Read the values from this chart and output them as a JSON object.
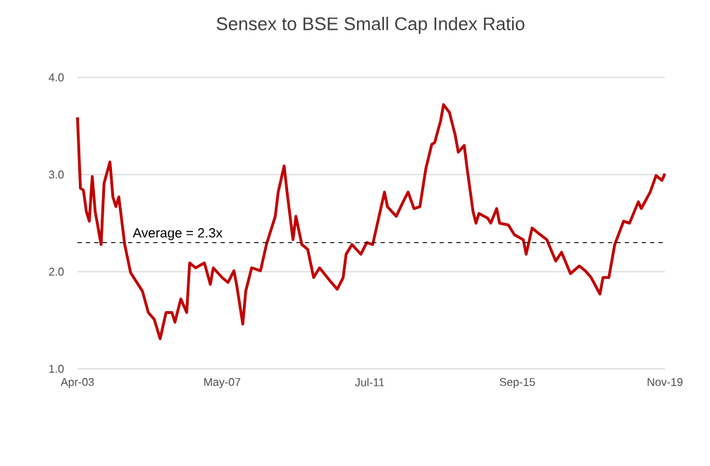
{
  "chart_data": {
    "type": "line",
    "title": "Sensex to BSE Small Cap Index Ratio",
    "x": [
      "2003-04",
      "2003-05",
      "2003-06",
      "2003-07",
      "2003-08",
      "2003-09",
      "2003-10",
      "2003-12",
      "2004-01",
      "2004-03",
      "2004-04",
      "2004-05",
      "2004-06",
      "2004-08",
      "2004-10",
      "2005-02",
      "2005-04",
      "2005-06",
      "2005-08",
      "2005-10",
      "2005-12",
      "2006-01",
      "2006-03",
      "2006-05",
      "2006-06",
      "2006-08",
      "2006-11",
      "2007-01",
      "2007-02",
      "2007-05",
      "2007-07",
      "2007-09",
      "2007-10",
      "2007-12",
      "2008-01",
      "2008-03",
      "2008-06",
      "2008-08",
      "2008-11",
      "2008-12",
      "2009-02",
      "2009-03",
      "2009-05",
      "2009-06",
      "2009-08",
      "2009-10",
      "2009-12",
      "2010-02",
      "2010-06",
      "2010-08",
      "2010-10",
      "2010-11",
      "2011-01",
      "2011-04",
      "2011-06",
      "2011-08",
      "2011-12",
      "2012-01",
      "2012-04",
      "2012-06",
      "2012-08",
      "2012-10",
      "2012-12",
      "2013-02",
      "2013-04",
      "2013-05",
      "2013-07",
      "2013-08",
      "2013-10",
      "2013-12",
      "2014-01",
      "2014-03",
      "2014-04",
      "2014-06",
      "2014-07",
      "2014-08",
      "2014-11",
      "2014-12",
      "2015-02",
      "2015-03",
      "2015-06",
      "2015-08",
      "2015-11",
      "2015-12",
      "2016-02",
      "2016-04",
      "2016-07",
      "2016-10",
      "2016-12",
      "2017-03",
      "2017-06",
      "2017-08",
      "2017-10",
      "2018-01",
      "2018-02",
      "2018-04",
      "2018-06",
      "2018-09",
      "2018-11",
      "2019-02",
      "2019-03",
      "2019-06",
      "2019-08",
      "2019-10",
      "2019-11"
    ],
    "series": [
      {
        "color": "#c00000",
        "values": [
          3.59,
          2.86,
          2.84,
          2.62,
          2.52,
          2.98,
          2.62,
          2.28,
          2.91,
          3.13,
          2.77,
          2.67,
          2.77,
          2.28,
          1.99,
          1.8,
          1.58,
          1.51,
          1.31,
          1.58,
          1.58,
          1.48,
          1.72,
          1.58,
          2.09,
          2.04,
          2.09,
          1.87,
          2.04,
          1.94,
          1.89,
          2.01,
          1.85,
          1.46,
          1.8,
          2.04,
          2.01,
          2.28,
          2.57,
          2.82,
          3.09,
          2.82,
          2.33,
          2.57,
          2.28,
          2.23,
          1.94,
          2.04,
          1.89,
          1.82,
          1.94,
          2.18,
          2.28,
          2.18,
          2.3,
          2.28,
          2.82,
          2.67,
          2.57,
          2.7,
          2.82,
          2.65,
          2.67,
          3.06,
          3.31,
          3.33,
          3.55,
          3.72,
          3.64,
          3.4,
          3.23,
          3.3,
          3.06,
          2.62,
          2.5,
          2.6,
          2.55,
          2.5,
          2.65,
          2.5,
          2.48,
          2.38,
          2.33,
          2.18,
          2.45,
          2.4,
          2.33,
          2.11,
          2.2,
          1.98,
          2.06,
          2.01,
          1.94,
          1.77,
          1.94,
          1.94,
          2.28,
          2.52,
          2.5,
          2.72,
          2.65,
          2.82,
          2.99,
          2.94,
          3.01
        ]
      }
    ],
    "xlim": [
      "2003-04",
      "2019-11"
    ],
    "xticks": [
      {
        "value": "2003-04",
        "label": "Apr-03"
      },
      {
        "value": "2007-05",
        "label": "May-07"
      },
      {
        "value": "2011-07",
        "label": "Jul-11"
      },
      {
        "value": "2015-09",
        "label": "Sep-15"
      },
      {
        "value": "2019-11",
        "label": "Nov-19"
      }
    ],
    "ylim": [
      1,
      4
    ],
    "yticks": [
      {
        "value": 1,
        "label": "1.0"
      },
      {
        "value": 2,
        "label": "2.0"
      },
      {
        "value": 3,
        "label": "3.0"
      },
      {
        "value": 4,
        "label": "4.0"
      }
    ],
    "grid": "y",
    "marker": "none",
    "line_style": "solid",
    "ref_lines": [
      {
        "axis": "y",
        "value": 2.3,
        "label": "Average = 2.3x",
        "color": "#000000",
        "line_style": "dashed"
      }
    ]
  }
}
